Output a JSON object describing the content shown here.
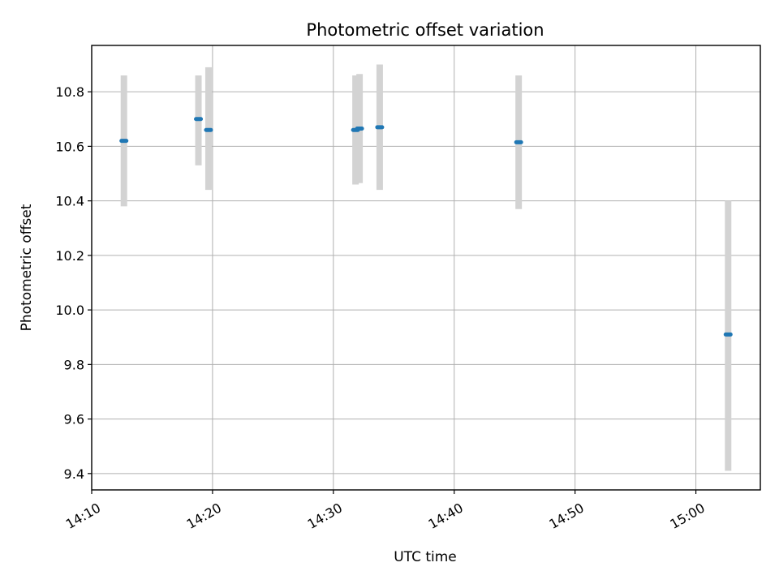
{
  "chart_data": {
    "type": "scatter",
    "title": "Photometric offset variation",
    "xlabel": "UTC time",
    "ylabel": "Photometric offset",
    "x_ticks": [
      "14:10",
      "14:20",
      "14:30",
      "14:40",
      "14:50",
      "15:00"
    ],
    "y_ticks": [
      "9.4",
      "9.6",
      "9.8",
      "10.0",
      "10.2",
      "10.4",
      "10.6",
      "10.8"
    ],
    "xlim": [
      "14:10:00",
      "15:05:20"
    ],
    "ylim": [
      9.34,
      10.97
    ],
    "grid": true,
    "colors": {
      "point": "#1f77b4",
      "error_bar": "#d3d3d3"
    },
    "series": [
      {
        "points": [
          {
            "x": "14:12:40",
            "y": 10.62,
            "y_low": 10.38,
            "y_high": 10.86
          },
          {
            "x": "14:18:50",
            "y": 10.7,
            "y_low": 10.53,
            "y_high": 10.86
          },
          {
            "x": "14:19:40",
            "y": 10.66,
            "y_low": 10.44,
            "y_high": 10.89
          },
          {
            "x": "14:31:50",
            "y": 10.66,
            "y_low": 10.46,
            "y_high": 10.86
          },
          {
            "x": "14:32:10",
            "y": 10.665,
            "y_low": 10.465,
            "y_high": 10.865
          },
          {
            "x": "14:33:50",
            "y": 10.67,
            "y_low": 10.44,
            "y_high": 10.9
          },
          {
            "x": "14:45:20",
            "y": 10.615,
            "y_low": 10.37,
            "y_high": 10.86
          },
          {
            "x": "15:02:40",
            "y": 9.91,
            "y_low": 9.41,
            "y_high": 10.4
          }
        ]
      }
    ]
  }
}
